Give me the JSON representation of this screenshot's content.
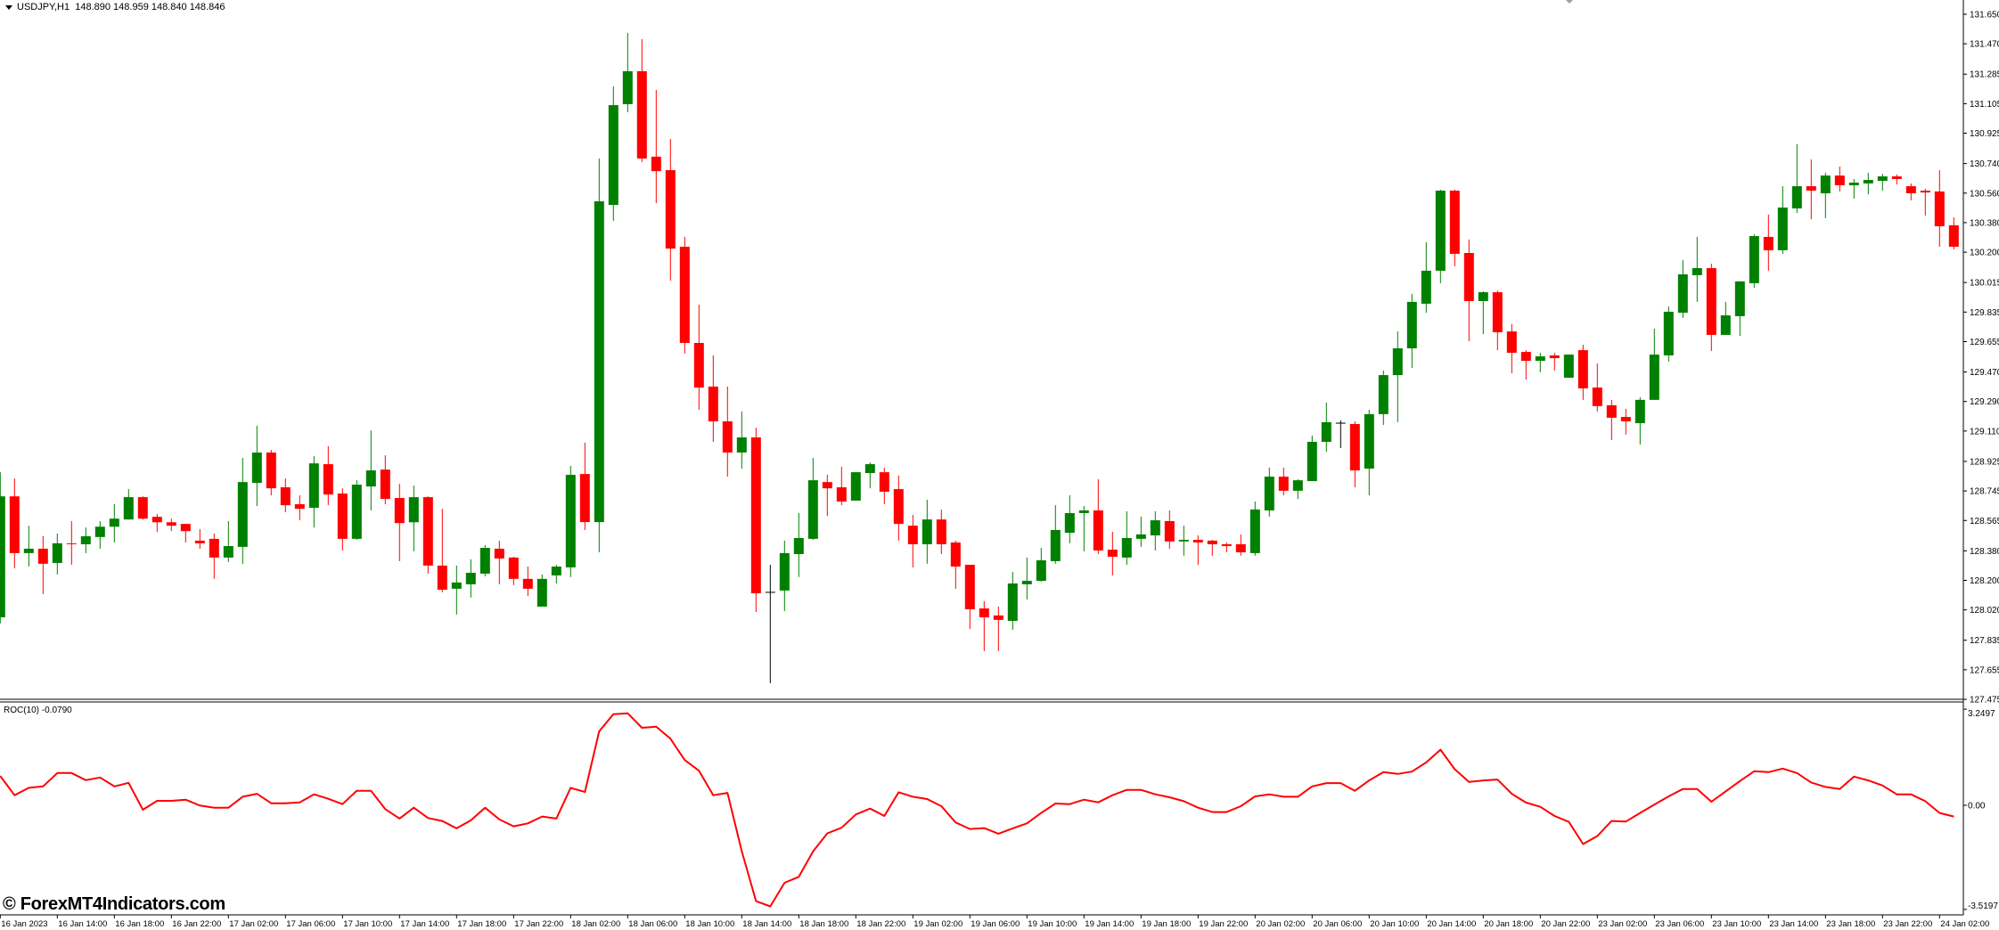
{
  "header": {
    "symbol": "USDJPY,H1",
    "ohlc": "148.890 148.959 148.840 148.846",
    "dropdown_icon": "triangle-down-icon"
  },
  "indicator": {
    "label": "ROC(10) -0.0790"
  },
  "watermark": "© ForexMT4Indicators.com",
  "colors": {
    "bull": "#008000",
    "bear": "#ff0000",
    "doji": "#000000",
    "roc_line": "#ff0000",
    "axis": "#000000",
    "background": "#ffffff",
    "marker": "#a0a0a0"
  },
  "chart_data": [
    {
      "type": "candlestick",
      "title": "",
      "symbol": "USDJPY",
      "timeframe": "H1",
      "ylim": [
        127.475,
        131.65
      ],
      "grid": false,
      "y_tick_labels": [
        "131.650",
        "131.470",
        "131.285",
        "131.105",
        "130.925",
        "130.740",
        "130.560",
        "130.380",
        "130.200",
        "130.015",
        "129.835",
        "129.655",
        "129.470",
        "129.290",
        "129.110",
        "128.925",
        "128.745",
        "128.565",
        "128.380",
        "128.200",
        "128.020",
        "127.835",
        "127.655",
        "127.475"
      ],
      "x_tick_labels": [
        "16 Jan 2023",
        "16 Jan 14:00",
        "16 Jan 18:00",
        "16 Jan 22:00",
        "17 Jan 02:00",
        "17 Jan 06:00",
        "17 Jan 10:00",
        "17 Jan 14:00",
        "17 Jan 18:00",
        "17 Jan 22:00",
        "18 Jan 02:00",
        "18 Jan 06:00",
        "18 Jan 10:00",
        "18 Jan 14:00",
        "18 Jan 18:00",
        "18 Jan 22:00",
        "19 Jan 02:00",
        "19 Jan 06:00",
        "19 Jan 10:00",
        "19 Jan 14:00",
        "19 Jan 18:00",
        "19 Jan 22:00",
        "20 Jan 02:00",
        "20 Jan 06:00",
        "20 Jan 10:00",
        "20 Jan 14:00",
        "20 Jan 18:00",
        "20 Jan 22:00",
        "23 Jan 02:00",
        "23 Jan 06:00",
        "23 Jan 10:00",
        "23 Jan 14:00",
        "23 Jan 18:00",
        "23 Jan 22:00",
        "24 Jan 02:00"
      ],
      "x_tick_every_bars": 4,
      "candle_fields": [
        "open",
        "high",
        "low",
        "close"
      ],
      "candles": [
        [
          127.975,
          128.859,
          127.937,
          128.712
        ],
        [
          128.712,
          128.821,
          128.274,
          128.366
        ],
        [
          128.366,
          128.533,
          128.284,
          128.393
        ],
        [
          128.393,
          128.469,
          128.116,
          128.301
        ],
        [
          128.306,
          128.485,
          128.236,
          128.426
        ],
        [
          128.426,
          128.561,
          128.295,
          128.424
        ],
        [
          128.42,
          128.522,
          128.366,
          128.469
        ],
        [
          128.464,
          128.561,
          128.393,
          128.527
        ],
        [
          128.527,
          128.664,
          128.431,
          128.576
        ],
        [
          128.571,
          128.756,
          128.571,
          128.707
        ],
        [
          128.707,
          128.712,
          128.571,
          128.576
        ],
        [
          128.587,
          128.604,
          128.495,
          128.554
        ],
        [
          128.554,
          128.576,
          128.5,
          128.533
        ],
        [
          128.544,
          128.544,
          128.431,
          128.5
        ],
        [
          128.442,
          128.512,
          128.393,
          128.426
        ],
        [
          128.453,
          128.485,
          128.209,
          128.339
        ],
        [
          128.339,
          128.561,
          128.312,
          128.409
        ],
        [
          128.404,
          128.946,
          128.301,
          128.799
        ],
        [
          128.794,
          129.142,
          128.653,
          128.979
        ],
        [
          128.979,
          128.995,
          128.718,
          128.761
        ],
        [
          128.767,
          128.821,
          128.615,
          128.658
        ],
        [
          128.664,
          128.718,
          128.566,
          128.636
        ],
        [
          128.642,
          128.957,
          128.522,
          128.913
        ],
        [
          128.908,
          129.017,
          128.658,
          128.723
        ],
        [
          128.729,
          128.761,
          128.382,
          128.453
        ],
        [
          128.453,
          128.81,
          128.447,
          128.783
        ],
        [
          128.772,
          129.114,
          128.626,
          128.87
        ],
        [
          128.875,
          128.962,
          128.664,
          128.696
        ],
        [
          128.702,
          128.788,
          128.317,
          128.549
        ],
        [
          128.554,
          128.777,
          128.377,
          128.707
        ],
        [
          128.707,
          128.712,
          128.241,
          128.29
        ],
        [
          128.29,
          128.636,
          128.127,
          128.143
        ],
        [
          128.149,
          128.29,
          127.992,
          128.187
        ],
        [
          128.176,
          128.328,
          128.095,
          128.246
        ],
        [
          128.241,
          128.415,
          128.225,
          128.398
        ],
        [
          128.393,
          128.442,
          128.176,
          128.333
        ],
        [
          128.339,
          128.344,
          128.171,
          128.209
        ],
        [
          128.209,
          128.284,
          128.105,
          128.149
        ],
        [
          128.04,
          128.236,
          128.04,
          128.209
        ],
        [
          128.23,
          128.295,
          128.181,
          128.284
        ],
        [
          128.279,
          128.897,
          128.22,
          128.843
        ],
        [
          128.848,
          129.039,
          128.507,
          128.555
        ],
        [
          128.555,
          130.771,
          128.371,
          130.51
        ],
        [
          130.488,
          131.21,
          130.391,
          131.096
        ],
        [
          131.102,
          131.536,
          131.053,
          131.303
        ],
        [
          131.303,
          131.498,
          130.749,
          130.771
        ],
        [
          130.782,
          131.189,
          130.499,
          130.694
        ],
        [
          130.7,
          130.89,
          130.027,
          130.222
        ],
        [
          130.233,
          130.293,
          129.582,
          129.647
        ],
        [
          129.647,
          129.88,
          129.239,
          129.375
        ],
        [
          129.381,
          129.571,
          129.044,
          129.169
        ],
        [
          129.169,
          129.381,
          128.832,
          128.979
        ],
        [
          128.979,
          129.229,
          128.881,
          129.071
        ],
        [
          129.071,
          129.131,
          128.007,
          128.121
        ],
        [
          128.127,
          128.295,
          127.573,
          128.127
        ],
        [
          128.138,
          128.442,
          128.013,
          128.366
        ],
        [
          128.36,
          128.61,
          128.22,
          128.458
        ],
        [
          128.453,
          128.946,
          128.447,
          128.81
        ],
        [
          128.799,
          128.843,
          128.593,
          128.761
        ],
        [
          128.767,
          128.892,
          128.658,
          128.68
        ],
        [
          128.686,
          128.859,
          128.686,
          128.859
        ],
        [
          128.854,
          128.919,
          128.761,
          128.908
        ],
        [
          128.859,
          128.887,
          128.664,
          128.74
        ],
        [
          128.756,
          128.838,
          128.442,
          128.544
        ],
        [
          128.533,
          128.599,
          128.279,
          128.42
        ],
        [
          128.42,
          128.691,
          128.301,
          128.571
        ],
        [
          128.571,
          128.631,
          128.36,
          128.42
        ],
        [
          128.431,
          128.442,
          128.149,
          128.284
        ],
        [
          128.295,
          128.295,
          127.904,
          128.024
        ],
        [
          128.029,
          128.073,
          127.769,
          127.975
        ],
        [
          127.986,
          128.04,
          127.769,
          127.959
        ],
        [
          127.953,
          128.252,
          127.899,
          128.181
        ],
        [
          128.176,
          128.339,
          128.084,
          128.197
        ],
        [
          128.197,
          128.398,
          128.192,
          128.322
        ],
        [
          128.317,
          128.658,
          128.301,
          128.507
        ],
        [
          128.49,
          128.718,
          128.426,
          128.61
        ],
        [
          128.61,
          128.653,
          128.377,
          128.626
        ],
        [
          128.626,
          128.816,
          128.36,
          128.382
        ],
        [
          128.387,
          128.496,
          128.23,
          128.344
        ],
        [
          128.339,
          128.621,
          128.295,
          128.458
        ],
        [
          128.453,
          128.588,
          128.404,
          128.48
        ],
        [
          128.474,
          128.621,
          128.382,
          128.566
        ],
        [
          128.561,
          128.626,
          128.393,
          128.437
        ],
        [
          128.437,
          128.533,
          128.35,
          128.447
        ],
        [
          128.447,
          128.474,
          128.295,
          128.431
        ],
        [
          128.442,
          128.447,
          128.35,
          128.42
        ],
        [
          128.42,
          128.431,
          128.371,
          128.409
        ],
        [
          128.42,
          128.48,
          128.35,
          128.371
        ],
        [
          128.366,
          128.68,
          128.35,
          128.632
        ],
        [
          128.626,
          128.887,
          128.588,
          128.832
        ],
        [
          128.832,
          128.887,
          128.718,
          128.746
        ],
        [
          128.746,
          128.816,
          128.696,
          128.81
        ],
        [
          128.805,
          129.082,
          128.805,
          129.044
        ],
        [
          129.044,
          129.283,
          128.984,
          129.164
        ],
        [
          129.158,
          129.175,
          129.006,
          129.158
        ],
        [
          129.153,
          129.169,
          128.767,
          128.87
        ],
        [
          128.881,
          129.24,
          128.718,
          129.213
        ],
        [
          129.213,
          129.479,
          129.147,
          129.451
        ],
        [
          129.451,
          129.717,
          129.164,
          129.614
        ],
        [
          129.614,
          129.945,
          129.495,
          129.897
        ],
        [
          129.886,
          130.26,
          129.831,
          130.087
        ],
        [
          130.087,
          130.581,
          130.011,
          130.575
        ],
        [
          130.575,
          130.581,
          130.114,
          130.19
        ],
        [
          130.195,
          130.277,
          129.658,
          129.902
        ],
        [
          129.902,
          129.962,
          129.701,
          129.956
        ],
        [
          129.956,
          129.967,
          129.603,
          129.712
        ],
        [
          129.717,
          129.761,
          129.462,
          129.587
        ],
        [
          129.592,
          129.603,
          129.424,
          129.538
        ],
        [
          129.538,
          129.587,
          129.468,
          129.565
        ],
        [
          129.571,
          129.587,
          129.479,
          129.554
        ],
        [
          129.435,
          129.576,
          129.435,
          129.576
        ],
        [
          129.603,
          129.636,
          129.3,
          129.37
        ],
        [
          129.375,
          129.522,
          129.229,
          129.262
        ],
        [
          129.267,
          129.3,
          129.055,
          129.191
        ],
        [
          129.196,
          129.245,
          129.088,
          129.169
        ],
        [
          129.158,
          129.316,
          129.028,
          129.3
        ],
        [
          129.3,
          129.734,
          129.3,
          129.576
        ],
        [
          129.571,
          129.869,
          129.533,
          129.837
        ],
        [
          129.831,
          130.152,
          129.799,
          130.065
        ],
        [
          130.06,
          130.293,
          129.897,
          130.103
        ],
        [
          130.103,
          130.13,
          129.598,
          129.696
        ],
        [
          129.696,
          129.897,
          129.696,
          129.815
        ],
        [
          129.81,
          130.022,
          129.69,
          130.022
        ],
        [
          130.011,
          130.309,
          129.983,
          130.298
        ],
        [
          130.293,
          130.429,
          130.087,
          130.212
        ],
        [
          130.212,
          130.602,
          130.19,
          130.472
        ],
        [
          130.467,
          130.858,
          130.439,
          130.602
        ],
        [
          130.602,
          130.765,
          130.401,
          130.575
        ],
        [
          130.559,
          130.684,
          130.407,
          130.667
        ],
        [
          130.667,
          130.722,
          130.57,
          130.608
        ],
        [
          130.608,
          130.646,
          130.526,
          130.624
        ],
        [
          130.619,
          130.684,
          130.553,
          130.64
        ],
        [
          130.635,
          130.678,
          130.575,
          130.662
        ],
        [
          130.662,
          130.673,
          130.613,
          130.646
        ],
        [
          130.602,
          130.619,
          130.516,
          130.559
        ],
        [
          130.575,
          130.586,
          130.423,
          130.564
        ],
        [
          130.57,
          130.7,
          130.233,
          130.358
        ],
        [
          130.364,
          130.412,
          130.217,
          130.233
        ]
      ]
    },
    {
      "type": "line",
      "name": "ROC(10)",
      "ylim": [
        -3.5197,
        3.2497
      ],
      "y_tick_labels": [
        "3.2497",
        "0.00",
        "-3.5197"
      ],
      "y_tick_values": [
        3.2497,
        0,
        -3.5197
      ],
      "grid": false,
      "values": [
        0.99,
        0.34,
        0.59,
        0.64,
        1.09,
        1.09,
        0.85,
        0.94,
        0.64,
        0.76,
        -0.15,
        0.15,
        0.15,
        0.19,
        -0.01,
        -0.08,
        -0.08,
        0.29,
        0.39,
        0.07,
        0.07,
        0.1,
        0.37,
        0.22,
        0.04,
        0.49,
        0.49,
        -0.13,
        -0.45,
        -0.08,
        -0.43,
        -0.53,
        -0.78,
        -0.51,
        -0.08,
        -0.48,
        -0.71,
        -0.61,
        -0.38,
        -0.45,
        0.59,
        0.45,
        2.5,
        3.08,
        3.11,
        2.62,
        2.66,
        2.25,
        1.53,
        1.17,
        0.34,
        0.42,
        -1.55,
        -3.24,
        -3.42,
        -2.62,
        -2.42,
        -1.56,
        -0.95,
        -0.76,
        -0.31,
        -0.11,
        -0.36,
        0.44,
        0.29,
        0.21,
        -0.03,
        -0.58,
        -0.8,
        -0.77,
        -0.96,
        -0.78,
        -0.61,
        -0.26,
        0.06,
        0.04,
        0.19,
        0.1,
        0.34,
        0.52,
        0.52,
        0.37,
        0.27,
        0.14,
        -0.08,
        -0.23,
        -0.23,
        -0.03,
        0.3,
        0.37,
        0.29,
        0.29,
        0.64,
        0.75,
        0.75,
        0.49,
        0.84,
        1.12,
        1.06,
        1.14,
        1.45,
        1.88,
        1.22,
        0.79,
        0.84,
        0.87,
        0.39,
        0.09,
        -0.05,
        -0.36,
        -0.56,
        -1.31,
        -1.04,
        -0.53,
        -0.55,
        -0.26,
        0.02,
        0.3,
        0.55,
        0.55,
        0.12,
        0.47,
        0.82,
        1.15,
        1.12,
        1.24,
        1.09,
        0.77,
        0.62,
        0.55,
        0.97,
        0.84,
        0.67,
        0.37,
        0.37,
        0.14,
        -0.26,
        -0.38
      ]
    }
  ]
}
